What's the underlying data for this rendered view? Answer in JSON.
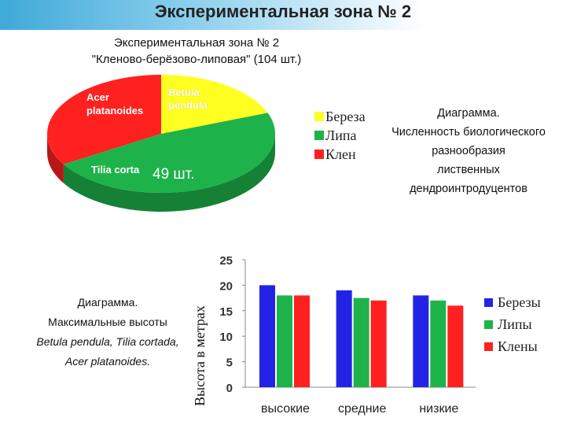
{
  "page_title": "Экспериментальная зона № 2",
  "colors": {
    "red": "#ff2020",
    "yellow": "#ffff22",
    "green": "#1db34a",
    "blue": "#2323e6"
  },
  "chart_data": [
    {
      "type": "pie",
      "title_line1": "Экспериментальная зона № 2",
      "title_line2": "\"Кленово-берёзово-липовая\" (104 шт.)",
      "slices": [
        {
          "label": "Acer platanoides",
          "value": 35,
          "color": "#ff2020"
        },
        {
          "label": "Betula pendula",
          "value": 20,
          "color": "#ffff22"
        },
        {
          "label": "Tilia cortata",
          "value": 49,
          "color": "#1db34a"
        }
      ],
      "data_label": "49 шт.",
      "legend": [
        {
          "label": "Береза",
          "color": "#ffff22"
        },
        {
          "label": "Липа",
          "color": "#1db34a"
        },
        {
          "label": "Клен",
          "color": "#ff2020"
        }
      ],
      "legend_position": "right"
    },
    {
      "type": "bar",
      "categories": [
        "высокие",
        "средние",
        "низкие"
      ],
      "series": [
        {
          "name": "Березы",
          "values": [
            20,
            19,
            18
          ],
          "color": "#2323e6"
        },
        {
          "name": "Липы",
          "values": [
            18,
            17.5,
            17
          ],
          "color": "#1db34a"
        },
        {
          "name": "Клены",
          "values": [
            18,
            17,
            16
          ],
          "color": "#ff2020"
        }
      ],
      "ylabel": "Высота в метрах",
      "ylim": [
        0,
        25
      ],
      "yticks": [
        0,
        5,
        10,
        15,
        20,
        25
      ],
      "grid": false,
      "legend_position": "right"
    }
  ],
  "pie_labels": {
    "acer_line1": "Acer",
    "acer_line2": "platanoides",
    "betula_line1": "Betula",
    "betula_line2": "pendula",
    "tilia": "Tilia corta"
  },
  "description1": {
    "lines": [
      "Диаграмма.",
      "Численность биологического",
      "разнообразия",
      "лиственных",
      "дендроинтродуцентов"
    ]
  },
  "description2": {
    "line1": "Диаграмма.",
    "line2": "Максимальные высоты",
    "line3": "Betula pendula, Tilia cortada,",
    "line4": "Acer platanoides."
  }
}
